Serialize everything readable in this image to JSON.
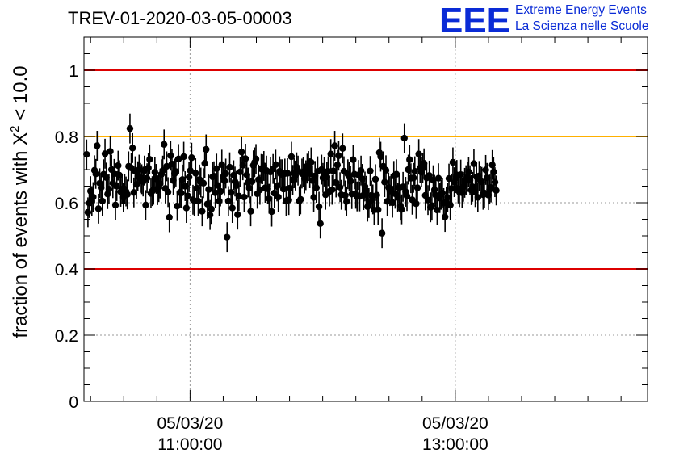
{
  "header": {
    "run_title": "TREV-01-2020-03-05-00003",
    "logo_text": "EEE",
    "logo_line1": "Extreme Energy Events",
    "logo_line2": "La Scienza nelle Scuole"
  },
  "colors": {
    "logo_blue": "#0a2bd6",
    "limit_red": "#dd0000",
    "warning_orange": "#ffb000",
    "points": "#000000",
    "grid": "#9a9a9a"
  },
  "chart_data": {
    "type": "scatter",
    "title": "TREV-01-2020-03-05-00003",
    "ylabel": "fraction of events with χ² < 10.0",
    "ylabel_main": "fraction of events with X",
    "ylabel_sup": "2",
    "ylabel_tail": " < 10.0",
    "xlabel": "",
    "ylim": [
      0,
      1.1
    ],
    "xlim_hours": [
      10.2,
      14.45
    ],
    "grid": true,
    "y_ticks": [
      0,
      0.2,
      0.4,
      0.6,
      0.8,
      1
    ],
    "y_tick_labels": [
      "0",
      "0.2",
      "0.4",
      "0.6",
      "0.8",
      "1"
    ],
    "y_grid": [
      0.2,
      0.6
    ],
    "x_ticks": [
      {
        "hour": 11,
        "date": "05/03/20",
        "time": "11:00:00"
      },
      {
        "hour": 13,
        "date": "05/03/20",
        "time": "13:00:00"
      }
    ],
    "x_minor_step_hours": 0.25,
    "reference_lines": [
      {
        "y": 1.0,
        "color": "#dd0000"
      },
      {
        "y": 0.8,
        "color": "#ffb000"
      },
      {
        "y": 0.4,
        "color": "#dd0000"
      }
    ],
    "error_bar": 0.045,
    "start_hour": 10.22,
    "step_hours": 0.0099,
    "values": [
      0.746,
      0.571,
      0.599,
      0.635,
      0.605,
      0.617,
      0.698,
      0.687,
      0.772,
      0.582,
      0.659,
      0.645,
      0.605,
      0.686,
      0.748,
      0.676,
      0.626,
      0.641,
      0.755,
      0.7,
      0.659,
      0.687,
      0.593,
      0.65,
      0.712,
      0.683,
      0.633,
      0.641,
      0.616,
      0.641,
      0.634,
      0.625,
      0.71,
      0.824,
      0.705,
      0.765,
      0.631,
      0.695,
      0.655,
      0.68,
      0.7,
      0.675,
      0.671,
      0.664,
      0.697,
      0.593,
      0.674,
      0.705,
      0.731,
      0.628,
      0.635,
      0.639,
      0.692,
      0.672,
      0.638,
      0.647,
      0.658,
      0.686,
      0.697,
      0.776,
      0.643,
      0.71,
      0.632,
      0.556,
      0.742,
      0.717,
      0.667,
      0.688,
      0.694,
      0.59,
      0.732,
      0.631,
      0.629,
      0.67,
      0.739,
      0.65,
      0.584,
      0.621,
      0.677,
      0.697,
      0.736,
      0.609,
      0.606,
      0.689,
      0.644,
      0.605,
      0.67,
      0.661,
      0.574,
      0.659,
      0.719,
      0.761,
      0.596,
      0.64,
      0.563,
      0.581,
      0.678,
      0.68,
      0.63,
      0.703,
      0.652,
      0.605,
      0.634,
      0.715,
      0.678,
      0.666,
      0.688,
      0.496,
      0.605,
      0.707,
      0.631,
      0.584,
      0.683,
      0.664,
      0.651,
      0.564,
      0.62,
      0.693,
      0.753,
      0.713,
      0.617,
      0.733,
      0.684,
      0.661,
      0.644,
      0.574,
      0.664,
      0.713,
      0.722,
      0.732,
      0.627,
      0.67,
      0.639,
      0.702,
      0.701,
      0.711,
      0.645,
      0.697,
      0.642,
      0.612,
      0.693,
      0.573,
      0.702,
      0.629,
      0.715,
      0.649,
      0.617,
      0.695,
      0.686,
      0.686,
      0.641,
      0.688,
      0.606,
      0.689,
      0.608,
      0.644,
      0.739,
      0.669,
      0.689,
      0.682,
      0.707,
      0.697,
      0.605,
      0.61,
      0.688,
      0.693,
      0.673,
      0.683,
      0.703,
      0.711,
      0.689,
      0.722,
      0.667,
      0.616,
      0.681,
      0.645,
      0.695,
      0.588,
      0.537,
      0.7,
      0.675,
      0.694,
      0.624,
      0.678,
      0.695,
      0.634,
      0.747,
      0.639,
      0.696,
      0.772,
      0.661,
      0.714,
      0.742,
      0.647,
      0.624,
      0.764,
      0.695,
      0.622,
      0.604,
      0.686,
      0.679,
      0.665,
      0.626,
      0.73,
      0.686,
      0.627,
      0.619,
      0.684,
      0.619,
      0.697,
      0.672,
      0.623,
      0.649,
      0.636,
      0.588,
      0.599,
      0.696,
      0.622,
      0.61,
      0.578,
      0.671,
      0.623,
      0.579,
      0.751,
      0.739,
      0.508,
      0.71,
      0.662,
      0.698,
      0.604,
      0.646,
      0.635,
      0.642,
      0.6,
      0.681,
      0.627,
      0.686,
      0.616,
      0.645,
      0.591,
      0.58,
      0.648,
      0.795,
      0.633,
      0.62,
      0.7,
      0.73,
      0.674,
      0.609,
      0.675,
      0.695,
      0.597,
      0.645,
      0.747,
      0.705,
      0.692,
      0.704,
      0.719,
      0.622,
      0.675,
      0.608,
      0.682,
      0.586,
      0.591,
      0.668,
      0.639,
      0.622,
      0.578,
      0.674,
      0.614,
      0.624,
      0.629,
      0.599,
      0.557,
      0.604,
      0.616,
      0.673,
      0.593,
      0.643,
      0.722,
      0.662,
      0.674,
      0.684,
      0.643,
      0.632,
      0.685,
      0.63,
      0.648,
      0.66,
      0.668,
      0.677,
      0.693,
      0.668,
      0.638,
      0.648,
      0.718,
      0.632,
      0.678,
      0.616,
      0.681,
      0.666,
      0.663,
      0.624,
      0.629,
      0.699,
      0.675,
      0.623,
      0.64,
      0.646,
      0.714,
      0.693,
      0.662,
      0.637
    ]
  }
}
